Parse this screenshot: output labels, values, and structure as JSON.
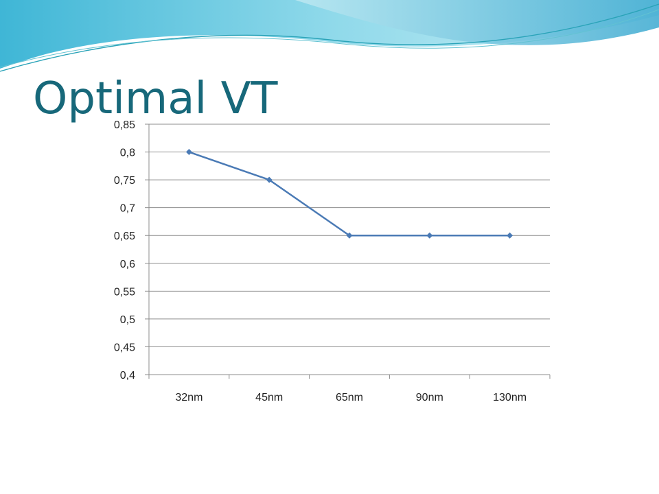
{
  "slide": {
    "title": "Optimal VT"
  },
  "colors": {
    "title": "#17687a",
    "series_line": "#4a7ab5",
    "gridline": "#8c8c8c",
    "banner_light": "#bfe9f2",
    "banner_mid": "#7fd3e6",
    "banner_dark": "#2ea7c8"
  },
  "chart_data": {
    "type": "line",
    "categories": [
      "32nm",
      "45nm",
      "65nm",
      "90nm",
      "130nm"
    ],
    "series": [
      {
        "values": [
          0.8,
          0.75,
          0.65,
          0.65,
          0.65
        ],
        "marker": "diamond"
      }
    ],
    "ylim": [
      0.4,
      0.85
    ],
    "yticks": [
      0.4,
      0.45,
      0.5,
      0.55,
      0.6,
      0.65,
      0.7,
      0.75,
      0.8,
      0.85
    ],
    "ytick_labels": [
      "0,4",
      "0,45",
      "0,5",
      "0,55",
      "0,6",
      "0,65",
      "0,7",
      "0,75",
      "0,8",
      "0,85"
    ],
    "xlabel": "",
    "ylabel": "",
    "grid": "horizontal",
    "legend": "none"
  }
}
